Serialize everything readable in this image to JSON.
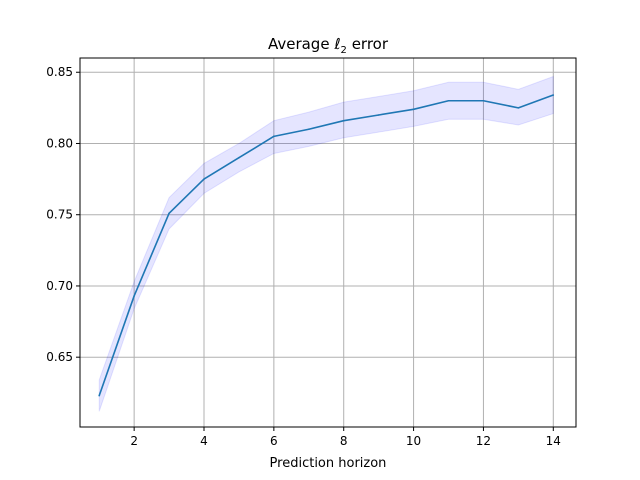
{
  "chart_data": {
    "type": "line",
    "title": "Average",
    "title_math": "ℓ",
    "title_sub": "2",
    "title_suffix": "error",
    "xlabel": "Prediction horizon",
    "ylabel": "",
    "xlim": [
      0.45,
      14.65
    ],
    "ylim": [
      0.601,
      0.86
    ],
    "xticks": [
      2,
      4,
      6,
      8,
      10,
      12,
      14
    ],
    "yticks": [
      0.65,
      0.7,
      0.75,
      0.8,
      0.85
    ],
    "ytick_labels": [
      "0.65",
      "0.70",
      "0.75",
      "0.80",
      "0.85"
    ],
    "grid": true,
    "series": [
      {
        "x": [
          1,
          2,
          3,
          4,
          5,
          6,
          7,
          8,
          9,
          10,
          11,
          12,
          13,
          14
        ],
        "values": [
          0.623,
          0.693,
          0.751,
          0.775,
          0.79,
          0.805,
          0.81,
          0.816,
          0.82,
          0.824,
          0.83,
          0.83,
          0.825,
          0.834
        ],
        "lower": [
          0.612,
          0.684,
          0.74,
          0.765,
          0.78,
          0.793,
          0.798,
          0.804,
          0.808,
          0.812,
          0.817,
          0.817,
          0.813,
          0.821
        ],
        "upper": [
          0.634,
          0.703,
          0.762,
          0.786,
          0.8,
          0.816,
          0.822,
          0.829,
          0.833,
          0.837,
          0.843,
          0.843,
          0.838,
          0.847
        ],
        "color": "#1f77b4",
        "band_color": "#0000ff"
      }
    ]
  }
}
